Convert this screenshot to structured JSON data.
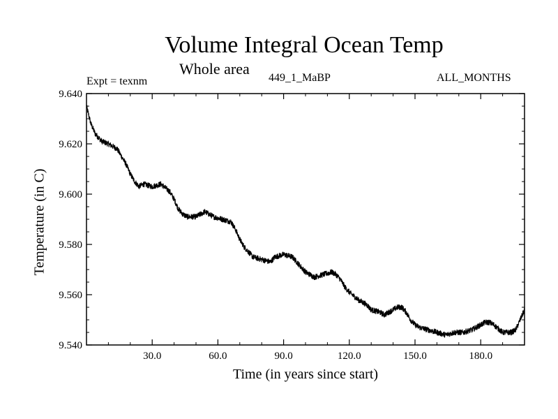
{
  "chart_data": {
    "type": "line",
    "title": "Volume Integral Ocean Temp",
    "subtitle": "Whole area",
    "annotations": {
      "left": "Expt = texnm",
      "center": "449_1_MaBP",
      "right": "ALL_MONTHS"
    },
    "xlabel": "Time (in years since start)",
    "ylabel": "Temperature (in C)",
    "xlim": [
      0,
      200
    ],
    "ylim": [
      9.54,
      9.64
    ],
    "x_ticks": [
      30,
      60,
      90,
      120,
      150,
      180
    ],
    "x_tick_labels": [
      "30.0",
      "60.0",
      "90.0",
      "120.0",
      "150.0",
      "180.0"
    ],
    "y_ticks": [
      9.54,
      9.56,
      9.58,
      9.6,
      9.62,
      9.64
    ],
    "y_tick_labels": [
      "9.540",
      "9.560",
      "9.580",
      "9.600",
      "9.620",
      "9.640"
    ],
    "series": [
      {
        "name": "Volume Integral Ocean Temp",
        "color": "#000000",
        "x": [
          0,
          2,
          4,
          7,
          10,
          14,
          18,
          20,
          22,
          24,
          26,
          30,
          34,
          38,
          40,
          42,
          44,
          46,
          50,
          54,
          56,
          58,
          62,
          66,
          68,
          70,
          72,
          74,
          76,
          80,
          84,
          86,
          90,
          94,
          96,
          98,
          100,
          102,
          104,
          108,
          112,
          114,
          116,
          118,
          120,
          124,
          128,
          130,
          134,
          136,
          138,
          140,
          142,
          144,
          146,
          148,
          150,
          152,
          156,
          160,
          164,
          168,
          172,
          176,
          180,
          182,
          184,
          186,
          190,
          194,
          196,
          198,
          200
        ],
        "values": [
          9.635,
          9.628,
          9.624,
          9.621,
          9.62,
          9.618,
          9.612,
          9.608,
          9.605,
          9.603,
          9.604,
          9.603,
          9.604,
          9.601,
          9.598,
          9.594,
          9.592,
          9.591,
          9.591,
          9.593,
          9.592,
          9.591,
          9.59,
          9.589,
          9.586,
          9.582,
          9.579,
          9.577,
          9.575,
          9.574,
          9.573,
          9.575,
          9.576,
          9.575,
          9.573,
          9.571,
          9.569,
          9.568,
          9.567,
          9.568,
          9.569,
          9.568,
          9.566,
          9.563,
          9.561,
          9.558,
          9.556,
          9.554,
          9.553,
          9.552,
          9.553,
          9.554,
          9.555,
          9.555,
          9.553,
          9.55,
          9.548,
          9.547,
          9.546,
          9.545,
          9.544,
          9.545,
          9.545,
          9.546,
          9.548,
          9.549,
          9.549,
          9.548,
          9.545,
          9.545,
          9.546,
          9.55,
          9.554
        ]
      }
    ]
  }
}
